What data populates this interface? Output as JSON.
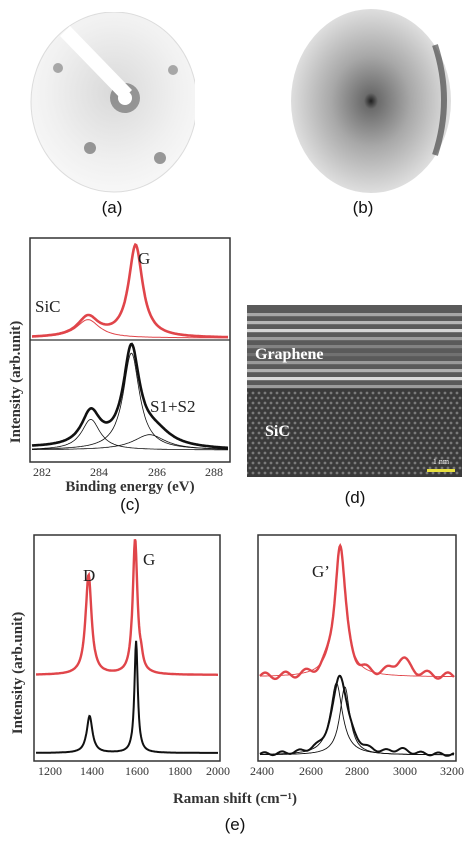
{
  "captions": {
    "a": "(a)",
    "b": "(b)",
    "c": "(c)",
    "d": "(d)",
    "e": "(e)"
  },
  "xps": {
    "ylabel": "Intensity (arb.unit)",
    "xlabel": "Binding energy (eV)",
    "ticks": [
      "282",
      "284",
      "286",
      "288"
    ],
    "labels": {
      "g": "G",
      "sic": "SiC",
      "s1s2": "S1+S2"
    },
    "colors": {
      "top": "#e0454a",
      "bottom": "#111111"
    }
  },
  "tem": {
    "label_graphene": "Graphene",
    "label_sic": "SiC",
    "scale": "1 nm"
  },
  "raman": {
    "ylabel": "Intensity (arb.unit)",
    "xlabel": "Raman shift (cm⁻¹)",
    "left_ticks": [
      "1200",
      "1400",
      "1600",
      "1800",
      "2000"
    ],
    "right_ticks": [
      "2400",
      "2600",
      "2800",
      "3000",
      "3200"
    ],
    "labels": {
      "d": "D",
      "g": "G",
      "g2": "G’"
    },
    "colors": {
      "top": "#e0454a",
      "bottom": "#111111"
    }
  },
  "chart_data": [
    {
      "type": "line",
      "xlabel": "Binding energy (eV)",
      "ylabel": "Intensity (arb.unit)",
      "xlim": [
        281,
        288
      ],
      "series": [
        {
          "name": "G",
          "peak_x": 284.7,
          "relative_height": 1.0
        },
        {
          "name": "SiC",
          "peak_x": 283.0,
          "relative_height": 0.2
        },
        {
          "name": "S1+S2",
          "peak_x": 285.0,
          "relative_height": 0.15
        }
      ]
    },
    {
      "type": "line",
      "xlabel": "Raman shift (cm⁻¹)",
      "ylabel": "Intensity (arb.unit)",
      "xlim": [
        1100,
        2000
      ],
      "series": [
        {
          "name": "D",
          "peak_x": 1360,
          "relative_height": 0.75
        },
        {
          "name": "G",
          "peak_x": 1590,
          "relative_height": 1.0
        }
      ]
    },
    {
      "type": "line",
      "xlabel": "Raman shift (cm⁻¹)",
      "xlim": [
        2400,
        3200
      ],
      "series": [
        {
          "name": "G’",
          "peak_x": 2730,
          "relative_height": 1.0
        }
      ]
    }
  ]
}
